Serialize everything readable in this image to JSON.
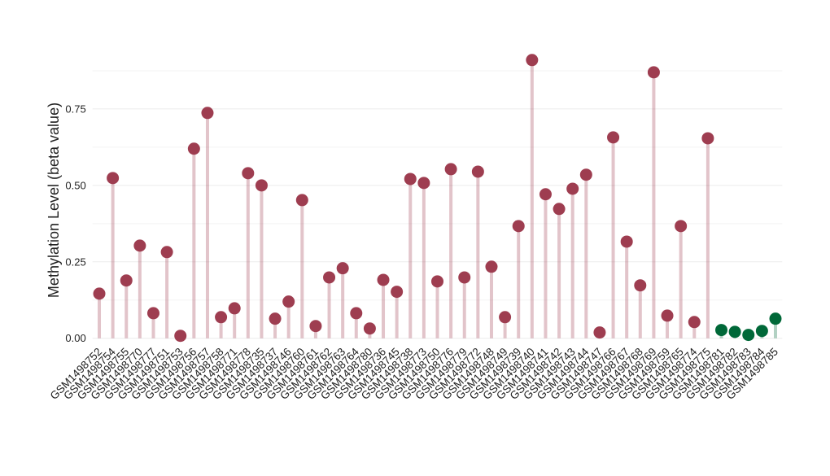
{
  "chart_data": {
    "type": "lollipop",
    "y_label": "Methylation Level (beta value)",
    "categories": [
      "GSM1498752",
      "GSM1498754",
      "GSM1498755",
      "GSM1498770",
      "GSM1498777",
      "GSM1498751",
      "GSM1498753",
      "GSM1498756",
      "GSM1498757",
      "GSM1498758",
      "GSM1498771",
      "GSM1498778",
      "GSM1498735",
      "GSM1498737",
      "GSM1498746",
      "GSM1498760",
      "GSM1498761",
      "GSM1498762",
      "GSM1498763",
      "GSM1498764",
      "GSM1498780",
      "GSM1498736",
      "GSM1498745",
      "GSM1498738",
      "GSM1498773",
      "GSM1498750",
      "GSM1498776",
      "GSM1498779",
      "GSM1498772",
      "GSM1498748",
      "GSM1498749",
      "GSM1498739",
      "GSM1498740",
      "GSM1498741",
      "GSM1498742",
      "GSM1498743",
      "GSM1498744",
      "GSM1498747",
      "GSM1498766",
      "GSM1498767",
      "GSM1498768",
      "GSM1498769",
      "GSM1498759",
      "GSM1498765",
      "GSM1498774",
      "GSM1498775",
      "GSM1498781",
      "GSM1498782",
      "GSM1498783",
      "GSM1498784",
      "GSM1498785"
    ],
    "values": [
      0.146,
      0.524,
      0.189,
      0.303,
      0.082,
      0.282,
      0.008,
      0.62,
      0.737,
      0.069,
      0.098,
      0.54,
      0.5,
      0.064,
      0.12,
      0.452,
      0.04,
      0.199,
      0.229,
      0.082,
      0.032,
      0.191,
      0.152,
      0.521,
      0.508,
      0.186,
      0.553,
      0.199,
      0.545,
      0.234,
      0.069,
      0.367,
      0.91,
      0.471,
      0.423,
      0.489,
      0.535,
      0.019,
      0.657,
      0.316,
      0.173,
      0.87,
      0.074,
      0.367,
      0.053,
      0.654,
      0.027,
      0.021,
      0.011,
      0.024,
      0.064
    ],
    "colors": [
      "#9e3d50",
      "#9e3d50",
      "#9e3d50",
      "#9e3d50",
      "#9e3d50",
      "#9e3d50",
      "#9e3d50",
      "#9e3d50",
      "#9e3d50",
      "#9e3d50",
      "#9e3d50",
      "#9e3d50",
      "#9e3d50",
      "#9e3d50",
      "#9e3d50",
      "#9e3d50",
      "#9e3d50",
      "#9e3d50",
      "#9e3d50",
      "#9e3d50",
      "#9e3d50",
      "#9e3d50",
      "#9e3d50",
      "#9e3d50",
      "#9e3d50",
      "#9e3d50",
      "#9e3d50",
      "#9e3d50",
      "#9e3d50",
      "#9e3d50",
      "#9e3d50",
      "#9e3d50",
      "#9e3d50",
      "#9e3d50",
      "#9e3d50",
      "#9e3d50",
      "#9e3d50",
      "#9e3d50",
      "#9e3d50",
      "#9e3d50",
      "#9e3d50",
      "#9e3d50",
      "#9e3d50",
      "#9e3d50",
      "#9e3d50",
      "#9e3d50",
      "#006838",
      "#006838",
      "#006838",
      "#006838",
      "#006838"
    ],
    "ylim": [
      -0.03,
      0.96
    ],
    "yticks": [
      {
        "value": 0,
        "label": "0.00"
      },
      {
        "value": 0.25,
        "label": "0.25"
      },
      {
        "value": 0.5,
        "label": "0.50"
      },
      {
        "value": 0.75,
        "label": "0.75"
      }
    ],
    "minor_yticks": [
      0.125,
      0.375,
      0.625,
      0.875
    ],
    "grid": true
  }
}
